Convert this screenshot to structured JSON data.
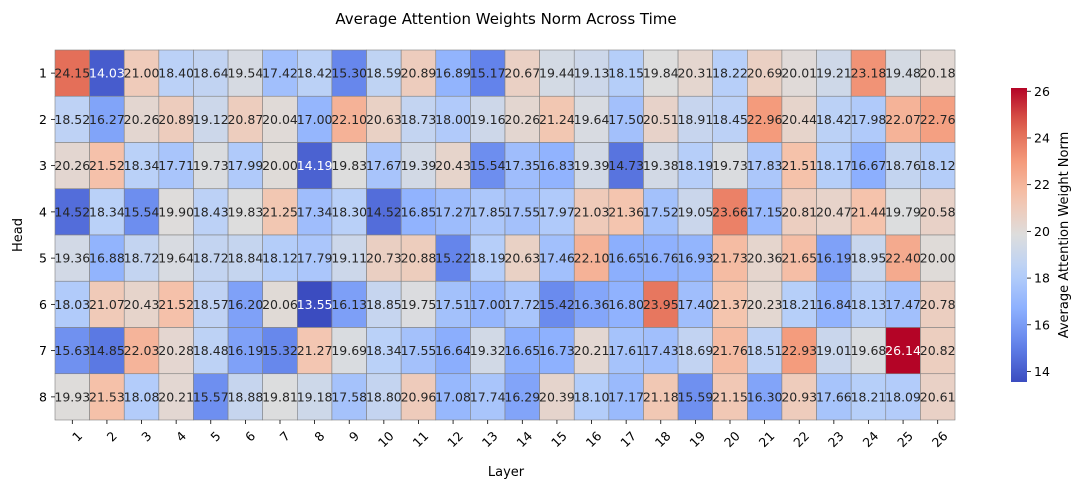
{
  "chart_data": {
    "type": "heatmap",
    "title": "Average Attention Weights Norm Across Time",
    "xlabel": "Layer",
    "ylabel": "Head",
    "x_ticks": [
      "1",
      "2",
      "3",
      "4",
      "5",
      "6",
      "7",
      "8",
      "9",
      "10",
      "11",
      "12",
      "13",
      "14",
      "15",
      "16",
      "17",
      "18",
      "19",
      "20",
      "21",
      "22",
      "23",
      "24",
      "25",
      "26"
    ],
    "y_ticks": [
      "1",
      "2",
      "3",
      "4",
      "5",
      "6",
      "7",
      "8"
    ],
    "colormap": "coolwarm",
    "vmin": 13.55,
    "vmax": 26.14,
    "colorbar": {
      "label": "Average Attention Weight Norm",
      "ticks": [
        "14",
        "16",
        "18",
        "20",
        "22",
        "24",
        "26"
      ]
    },
    "values": [
      [
        24.15,
        14.03,
        21.0,
        18.4,
        18.64,
        19.54,
        17.42,
        18.42,
        15.3,
        18.59,
        20.89,
        16.89,
        15.17,
        20.67,
        19.44,
        19.13,
        18.15,
        19.84,
        20.31,
        18.22,
        20.69,
        20.01,
        19.21,
        23.18,
        19.48,
        20.18
      ],
      [
        18.52,
        16.27,
        20.26,
        20.89,
        19.12,
        20.87,
        20.04,
        17.0,
        22.1,
        20.63,
        18.73,
        18.0,
        19.16,
        20.26,
        21.24,
        19.64,
        17.5,
        20.51,
        18.91,
        18.45,
        22.96,
        20.44,
        18.42,
        17.98,
        22.07,
        22.76
      ],
      [
        20.26,
        21.52,
        18.34,
        17.71,
        19.73,
        17.99,
        20.0,
        14.19,
        19.83,
        17.67,
        19.39,
        20.43,
        15.54,
        17.35,
        16.83,
        19.39,
        14.73,
        19.38,
        18.19,
        19.73,
        17.83,
        21.51,
        18.17,
        16.67,
        18.76,
        18.12
      ],
      [
        14.52,
        18.34,
        15.54,
        19.9,
        18.43,
        19.83,
        21.25,
        17.34,
        18.3,
        14.52,
        16.85,
        17.27,
        17.85,
        17.55,
        17.97,
        21.03,
        21.36,
        17.52,
        19.05,
        23.66,
        17.15,
        20.81,
        20.47,
        21.44,
        19.79,
        20.58
      ],
      [
        19.36,
        16.88,
        18.72,
        19.64,
        18.72,
        18.84,
        18.12,
        17.79,
        19.11,
        20.73,
        20.88,
        15.22,
        18.19,
        20.63,
        17.46,
        22.1,
        16.65,
        16.76,
        16.93,
        21.73,
        20.36,
        21.65,
        16.19,
        18.95,
        22.4,
        20.0
      ],
      [
        18.03,
        21.07,
        20.43,
        21.52,
        18.57,
        16.2,
        20.06,
        13.55,
        16.13,
        18.85,
        19.75,
        17.51,
        17.0,
        17.72,
        15.42,
        16.36,
        16.8,
        23.95,
        17.4,
        21.37,
        20.23,
        18.21,
        16.84,
        18.13,
        17.47,
        20.78
      ],
      [
        15.63,
        14.85,
        22.03,
        20.28,
        18.48,
        16.19,
        15.32,
        21.27,
        19.69,
        18.34,
        17.55,
        16.64,
        19.32,
        16.65,
        16.73,
        20.21,
        17.61,
        17.43,
        18.69,
        21.76,
        18.51,
        22.93,
        19.01,
        19.68,
        26.14,
        20.82
      ],
      [
        19.93,
        21.53,
        18.08,
        20.21,
        15.57,
        18.88,
        19.81,
        19.18,
        17.58,
        18.8,
        20.96,
        17.08,
        17.74,
        16.29,
        20.39,
        18.1,
        17.17,
        21.18,
        15.59,
        21.15,
        16.3,
        20.93,
        17.66,
        18.21,
        18.09,
        20.61
      ]
    ]
  }
}
